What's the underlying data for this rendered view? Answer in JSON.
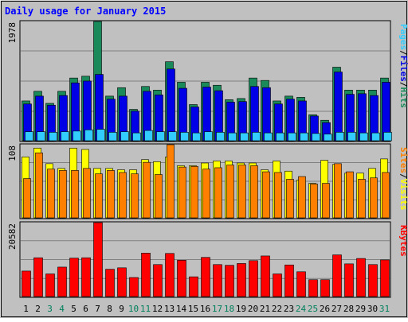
{
  "chart_data": {
    "type": "bar",
    "title": "Daily usage for January 2015",
    "categories": [
      "1",
      "2",
      "3",
      "4",
      "5",
      "6",
      "7",
      "8",
      "9",
      "10",
      "11",
      "12",
      "13",
      "14",
      "15",
      "16",
      "17",
      "18",
      "19",
      "20",
      "21",
      "22",
      "23",
      "24",
      "25",
      "26",
      "27",
      "28",
      "29",
      "30",
      "31"
    ],
    "weekend_days": [
      "3",
      "4",
      "10",
      "11",
      "17",
      "18",
      "24",
      "25",
      "31"
    ],
    "panels": [
      {
        "id": "hits-files-pages",
        "max_label": "1978",
        "ylim": [
          0,
          1978
        ],
        "right_labels": [
          "Pages",
          "/",
          "Files",
          "/",
          "Hits"
        ],
        "series": [
          {
            "name": "Hits",
            "color": "#1a8a5a",
            "values": [
              660,
              820,
              620,
              820,
              1040,
              1070,
              1978,
              740,
              880,
              520,
              900,
              840,
              1310,
              970,
              600,
              970,
              920,
              680,
              700,
              1040,
              1000,
              660,
              740,
              720,
              430,
              340,
              1220,
              840,
              840,
              840,
              1040
            ]
          },
          {
            "name": "Files",
            "color": "#0000e6",
            "values": [
              610,
              740,
              590,
              750,
              960,
              990,
              1100,
              690,
              740,
              490,
              820,
              760,
              1190,
              870,
              560,
              890,
              830,
              640,
              650,
              900,
              880,
              610,
              690,
              660,
              410,
              300,
              1140,
              770,
              780,
              750,
              970
            ]
          },
          {
            "name": "Pages",
            "color": "#33ccff",
            "values": [
              150,
              150,
              140,
              150,
              160,
              180,
              190,
              140,
              150,
              130,
              170,
              150,
              150,
              140,
              130,
              150,
              140,
              130,
              130,
              140,
              130,
              130,
              130,
              130,
              120,
              110,
              140,
              140,
              130,
              130,
              140
            ]
          }
        ]
      },
      {
        "id": "visits-sites",
        "max_label": "108",
        "ylim": [
          0,
          108
        ],
        "right_labels": [
          "Sites",
          "/",
          "Visits"
        ],
        "series": [
          {
            "name": "Visits",
            "color": "#ffff00",
            "values": [
              90,
              103,
              80,
              73,
              103,
              101,
              73,
              73,
              71,
              71,
              86,
              83,
              90,
              77,
              77,
              81,
              84,
              84,
              81,
              81,
              71,
              84,
              69,
              56,
              51,
              85,
              79,
              66,
              66,
              73,
              87
            ]
          },
          {
            "name": "Sites",
            "color": "#ff8000",
            "values": [
              58,
              96,
              72,
              70,
              70,
              73,
              65,
              70,
              67,
              65,
              82,
              64,
              108,
              75,
              76,
              72,
              74,
              78,
              78,
              77,
              68,
              67,
              57,
              61,
              50,
              51,
              80,
              68,
              57,
              59,
              67
            ]
          }
        ]
      },
      {
        "id": "kbytes",
        "max_label": "20582",
        "ylim": [
          0,
          20582
        ],
        "right_labels": [
          "KBytes"
        ],
        "series": [
          {
            "name": "KBytes",
            "color": "#ff0000",
            "values": [
              7100,
              10800,
              6300,
              8200,
              10700,
              10800,
              20582,
              7600,
              8000,
              5300,
              12100,
              8900,
              12000,
              10100,
              5500,
              10900,
              8900,
              8700,
              9200,
              10000,
              11300,
              6300,
              8800,
              6900,
              4700,
              4700,
              11600,
              9100,
              10600,
              8900,
              10200
            ]
          }
        ]
      }
    ]
  },
  "colors": {
    "background": "#c0c0c0",
    "panel_border": "#000000",
    "title": "#0000ff",
    "weekday_label": "#000000",
    "weekend_label": "#00805c",
    "gridline": "#808080"
  }
}
